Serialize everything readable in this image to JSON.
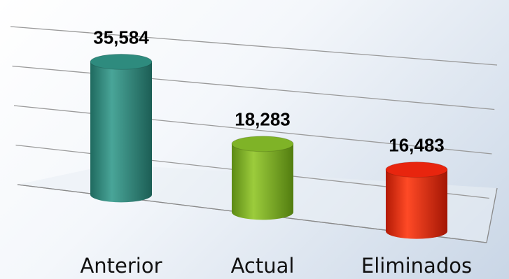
{
  "chart_data": {
    "type": "bar",
    "categories": [
      "Anterior",
      "Actual",
      "Eliminados"
    ],
    "values": [
      35584,
      18283,
      16483
    ],
    "value_labels": [
      "35,584",
      "18,283",
      "16,483"
    ],
    "title": "",
    "xlabel": "",
    "ylabel": "",
    "ylim": [
      0,
      40000
    ],
    "grid": true,
    "legend": "none",
    "colors": [
      "#2e8b7e",
      "#7fb327",
      "#e8250e"
    ],
    "style": "3d-cylinder"
  }
}
